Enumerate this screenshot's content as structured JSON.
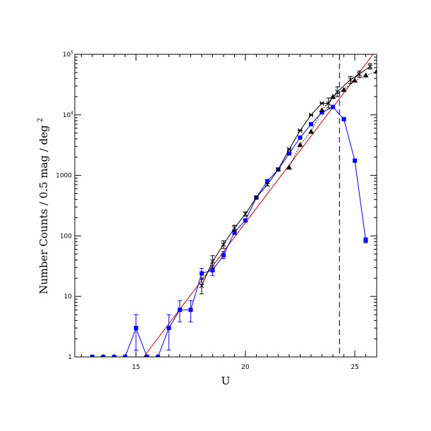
{
  "chart_data": {
    "type": "scatter",
    "xlabel": "U",
    "ylabel": "Number Counts / 0.5 mag / deg",
    "ylabel_sup": "2",
    "xlim": [
      12.2,
      26.0
    ],
    "ylim": [
      1,
      100000
    ],
    "yscale": "log",
    "x_ticks": [
      {
        "value": 15,
        "label": "15"
      },
      {
        "value": 20,
        "label": "20"
      },
      {
        "value": 25,
        "label": "25"
      }
    ],
    "y_ticks": [
      {
        "value": 1,
        "label": "1",
        "sup": ""
      },
      {
        "value": 10,
        "label": "10",
        "sup": ""
      },
      {
        "value": 100,
        "label": "100",
        "sup": ""
      },
      {
        "value": 1000,
        "label": "1000",
        "sup": ""
      },
      {
        "value": 10000,
        "label": "10",
        "sup": "4"
      },
      {
        "value": 100000,
        "label": "10",
        "sup": "5"
      }
    ],
    "series": [
      {
        "color": "#0000ff",
        "marker": "square",
        "line": "solid",
        "points": [
          {
            "x": 13.0,
            "y": 1,
            "err": [
              0,
              0
            ]
          },
          {
            "x": 13.5,
            "y": 1,
            "err": [
              0,
              0
            ]
          },
          {
            "x": 14.0,
            "y": 1,
            "err": [
              0,
              0
            ]
          },
          {
            "x": 14.5,
            "y": 1,
            "err": [
              0,
              0
            ]
          },
          {
            "x": 15.0,
            "y": 3,
            "err": [
              1.3,
              5.0
            ]
          },
          {
            "x": 15.5,
            "y": 1,
            "err": [
              0,
              0
            ]
          },
          {
            "x": 16.0,
            "y": 1,
            "err": [
              0,
              0
            ]
          },
          {
            "x": 16.5,
            "y": 3,
            "err": [
              1.3,
              5.0
            ]
          },
          {
            "x": 17.0,
            "y": 6,
            "err": [
              3.8,
              8.5
            ]
          },
          {
            "x": 17.5,
            "y": 6,
            "err": [
              3.8,
              8.5
            ]
          },
          {
            "x": 18.0,
            "y": 24,
            "err": [
              19,
              29
            ]
          },
          {
            "x": 18.5,
            "y": 27,
            "err": [
              22,
              32
            ]
          },
          {
            "x": 19.0,
            "y": 48,
            "err": [
              42,
              55
            ]
          },
          {
            "x": 19.5,
            "y": 115,
            "err": [
              105,
              125
            ]
          },
          {
            "x": 20.0,
            "y": 180,
            "err": [
              168,
              192
            ]
          },
          {
            "x": 20.5,
            "y": 430,
            "err": [
              410,
              450
            ]
          },
          {
            "x": 21.0,
            "y": 800,
            "err": [
              770,
              830
            ]
          },
          {
            "x": 21.5,
            "y": 1250,
            "err": [
              1210,
              1290
            ]
          },
          {
            "x": 22.0,
            "y": 2300,
            "err": [
              2250,
              2350
            ]
          },
          {
            "x": 22.5,
            "y": 4200,
            "err": [
              4130,
              4270
            ]
          },
          {
            "x": 23.0,
            "y": 7000,
            "err": [
              6900,
              7100
            ]
          },
          {
            "x": 23.5,
            "y": 11000,
            "err": [
              10900,
              11100
            ]
          },
          {
            "x": 24.0,
            "y": 13500,
            "err": [
              13380,
              13620
            ]
          },
          {
            "x": 24.5,
            "y": 8500,
            "err": [
              8400,
              8600
            ]
          },
          {
            "x": 25.0,
            "y": 1750,
            "err": [
              1700,
              1800
            ]
          },
          {
            "x": 25.5,
            "y": 85,
            "err": [
              77,
              93
            ]
          }
        ]
      },
      {
        "color": "#000000",
        "marker": "cross",
        "line": "solid",
        "points": [
          {
            "x": 18.0,
            "y": 15,
            "err": [
              11,
              20
            ]
          },
          {
            "x": 18.5,
            "y": 38,
            "err": [
              30,
              47
            ]
          },
          {
            "x": 19.0,
            "y": 72,
            "err": [
              62,
              83
            ]
          },
          {
            "x": 19.5,
            "y": 135,
            "err": [
              121,
              150
            ]
          },
          {
            "x": 20.0,
            "y": 230,
            "err": [
              212,
              250
            ]
          },
          {
            "x": 20.5,
            "y": 430,
            "err": [
              405,
              455
            ]
          },
          {
            "x": 21.0,
            "y": 700,
            "err": [
              670,
              730
            ]
          },
          {
            "x": 21.5,
            "y": 1250,
            "err": [
              1210,
              1290
            ]
          },
          {
            "x": 22.0,
            "y": 2700,
            "err": [
              2640,
              2760
            ]
          },
          {
            "x": 22.5,
            "y": 5500,
            "err": [
              5420,
              5580
            ]
          },
          {
            "x": 23.0,
            "y": 10000,
            "err": [
              9850,
              10150
            ]
          },
          {
            "x": 23.5,
            "y": 15500,
            "err": [
              15300,
              15700
            ]
          },
          {
            "x": 23.8,
            "y": 15500,
            "err": [
              13000,
              19000
            ]
          },
          {
            "x": 24.2,
            "y": 24000,
            "err": [
              20000,
              29000
            ]
          },
          {
            "x": 24.8,
            "y": 38000,
            "err": [
              33000,
              43000
            ]
          },
          {
            "x": 25.2,
            "y": 47000,
            "err": [
              42000,
              53000
            ]
          },
          {
            "x": 25.7,
            "y": 63000,
            "err": [
              57000,
              70000
            ]
          }
        ]
      },
      {
        "color": "#000000",
        "marker": "triangle",
        "line": "dotted",
        "points": [
          {
            "x": 22.0,
            "y": 1350
          },
          {
            "x": 22.5,
            "y": 3200
          },
          {
            "x": 23.0,
            "y": 5300
          },
          {
            "x": 23.5,
            "y": 12000
          },
          {
            "x": 24.0,
            "y": 20000
          },
          {
            "x": 24.5,
            "y": 26000
          },
          {
            "x": 25.0,
            "y": 37000
          },
          {
            "x": 25.5,
            "y": 45000
          },
          {
            "x": 26.0,
            "y": 52000
          }
        ]
      }
    ],
    "model_line": {
      "color": "#cc0000",
      "x": [
        15.35,
        26.0
      ],
      "y": [
        1,
        120000
      ]
    },
    "limit_line": {
      "color": "#0000ff",
      "style": "dashed",
      "x": 24.3
    }
  }
}
